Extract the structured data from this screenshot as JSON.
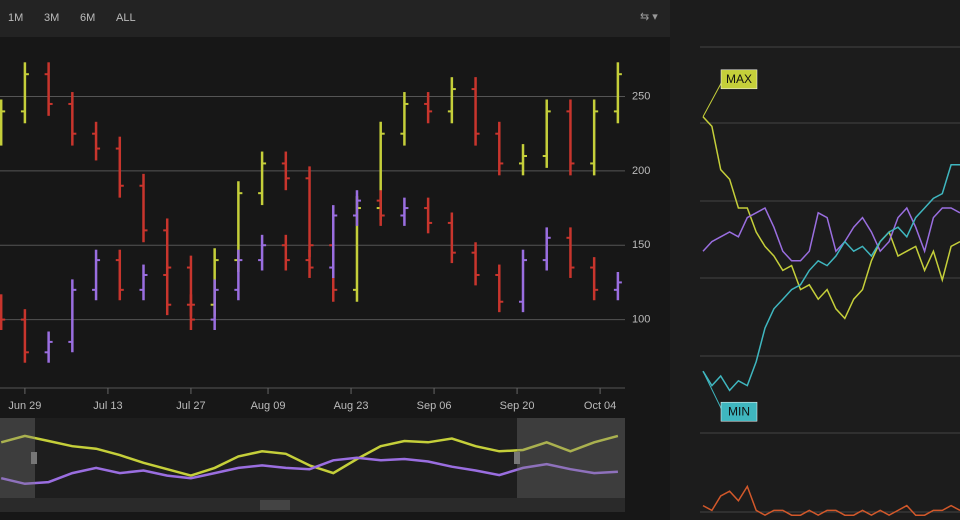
{
  "chart_data": [
    {
      "type": "ohlc",
      "range_selector": [
        "1M",
        "3M",
        "6M",
        "ALL"
      ],
      "x": [
        -4,
        0,
        4,
        8,
        12,
        16,
        20,
        24,
        28,
        32,
        36,
        40,
        44,
        48,
        52,
        56,
        60,
        64,
        68,
        72,
        76,
        80,
        84,
        88,
        92,
        96,
        100
      ],
      "xlim": [
        -4.2,
        101.2
      ],
      "xticks": [
        {
          "value": 0,
          "label": "Jun 29"
        },
        {
          "value": 14,
          "label": "Jul 13"
        },
        {
          "value": 28,
          "label": "Jul 27"
        },
        {
          "value": 41,
          "label": "Aug 09"
        },
        {
          "value": 55,
          "label": "Aug 23"
        },
        {
          "value": 69,
          "label": "Sep 06"
        },
        {
          "value": 83,
          "label": "Sep 20"
        },
        {
          "value": 97,
          "label": "Oct 04"
        }
      ],
      "ylim": [
        54,
        288
      ],
      "yticks": [
        100,
        150,
        200,
        250
      ],
      "grid": true,
      "series": [
        {
          "color": "#c5cf3a",
          "down_color": "#c8352d",
          "open": [
            225,
            240,
            265,
            245,
            225,
            215,
            190,
            160,
            135,
            110,
            140,
            185,
            205,
            195,
            150,
            120,
            175,
            225,
            245,
            240,
            255,
            225,
            205,
            210,
            240,
            205,
            240
          ],
          "high": [
            248,
            273,
            273,
            253,
            233,
            223,
            198,
            168,
            143,
            148,
            193,
            213,
            213,
            203,
            158,
            183,
            233,
            253,
            253,
            263,
            263,
            233,
            218,
            248,
            248,
            248,
            273
          ],
          "low": [
            217,
            232,
            237,
            217,
            207,
            182,
            152,
            127,
            102,
            102,
            132,
            177,
            187,
            142,
            112,
            112,
            167,
            217,
            232,
            232,
            217,
            197,
            197,
            202,
            197,
            197,
            232
          ],
          "close": [
            240,
            265,
            245,
            225,
            215,
            190,
            160,
            135,
            110,
            140,
            185,
            205,
            195,
            150,
            120,
            175,
            225,
            245,
            240,
            255,
            225,
            205,
            210,
            240,
            205,
            240,
            265
          ]
        },
        {
          "color": "#9a6ee0",
          "down_color": "#c8352d",
          "open": [
            110,
            100,
            78,
            85,
            120,
            140,
            120,
            130,
            110,
            100,
            120,
            140,
            150,
            140,
            135,
            170,
            180,
            170,
            175,
            165,
            145,
            130,
            112,
            140,
            155,
            135,
            120
          ],
          "high": [
            117,
            107,
            92,
            127,
            147,
            147,
            137,
            137,
            117,
            127,
            147,
            157,
            157,
            147,
            177,
            187,
            187,
            182,
            182,
            172,
            152,
            137,
            147,
            162,
            162,
            142,
            132
          ],
          "low": [
            93,
            71,
            71,
            78,
            113,
            113,
            113,
            103,
            93,
            93,
            113,
            133,
            133,
            128,
            128,
            163,
            163,
            163,
            158,
            138,
            123,
            105,
            105,
            133,
            128,
            113,
            113
          ],
          "close": [
            100,
            78,
            85,
            120,
            140,
            120,
            130,
            110,
            100,
            120,
            140,
            150,
            140,
            135,
            170,
            180,
            170,
            175,
            165,
            145,
            130,
            112,
            140,
            155,
            135,
            120,
            125
          ]
        }
      ]
    },
    {
      "type": "line",
      "ylim": [
        0,
        100
      ],
      "grid": true,
      "series": [
        {
          "color": "#c5cf3a",
          "label": "MAX",
          "values": [
            84,
            82,
            73,
            71,
            65,
            65,
            60,
            57,
            55,
            52,
            53,
            48,
            49,
            46,
            48,
            44,
            42,
            46,
            48,
            54,
            58,
            60,
            55,
            56,
            57,
            52,
            56,
            50,
            57,
            58
          ]
        },
        {
          "color": "#9a6ee0",
          "values": [
            56,
            58,
            59,
            60,
            59,
            63,
            64,
            65,
            61,
            56,
            54,
            54,
            56,
            64,
            63,
            56,
            58,
            61,
            63,
            60,
            56,
            58,
            63,
            65,
            61,
            56,
            63,
            65,
            65,
            64
          ]
        },
        {
          "color": "#3fb6bf",
          "label": "MIN",
          "values": [
            31,
            28,
            30,
            27,
            29,
            28,
            33,
            40,
            44,
            46,
            48,
            49,
            52,
            54,
            53,
            55,
            58,
            56,
            57,
            55,
            58,
            60,
            61,
            59,
            63,
            65,
            67,
            68,
            74,
            74
          ]
        },
        {
          "color": "#d2582a",
          "values": [
            3,
            2,
            5,
            6,
            4,
            7,
            2,
            1,
            2,
            2,
            1,
            1,
            2,
            1,
            2,
            2,
            1,
            1,
            2,
            1,
            2,
            1,
            2,
            3,
            1,
            1,
            2,
            2,
            3,
            2
          ]
        }
      ]
    }
  ]
}
